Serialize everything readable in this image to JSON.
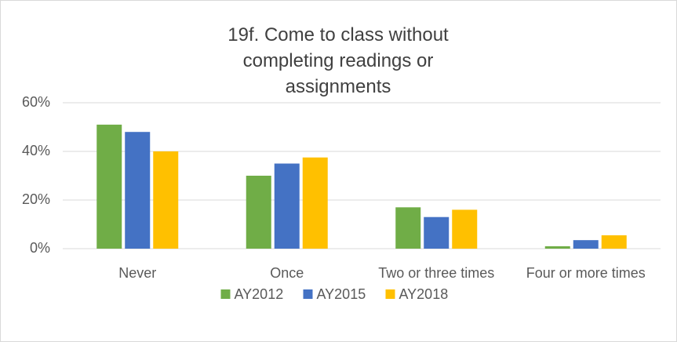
{
  "chart_data": {
    "type": "bar",
    "title": "19f. Come to class without completing readings or assignments",
    "categories": [
      "Never",
      "Once",
      "Two or three times",
      "Four or more times"
    ],
    "series": [
      {
        "name": "AY2012",
        "color": "#70ad47",
        "values": [
          51,
          30,
          17,
          1
        ]
      },
      {
        "name": "AY2015",
        "color": "#4472c4",
        "values": [
          48,
          35,
          13,
          3.5
        ]
      },
      {
        "name": "AY2018",
        "color": "#ffc000",
        "values": [
          40,
          37.5,
          16,
          5.5
        ]
      }
    ],
    "ylim": [
      0,
      60
    ],
    "yticks": [
      {
        "value": 0,
        "label": "0%"
      },
      {
        "value": 20,
        "label": "20%"
      },
      {
        "value": 40,
        "label": "40%"
      },
      {
        "value": 60,
        "label": "60%"
      }
    ],
    "grid": true,
    "legend": "bottom"
  }
}
